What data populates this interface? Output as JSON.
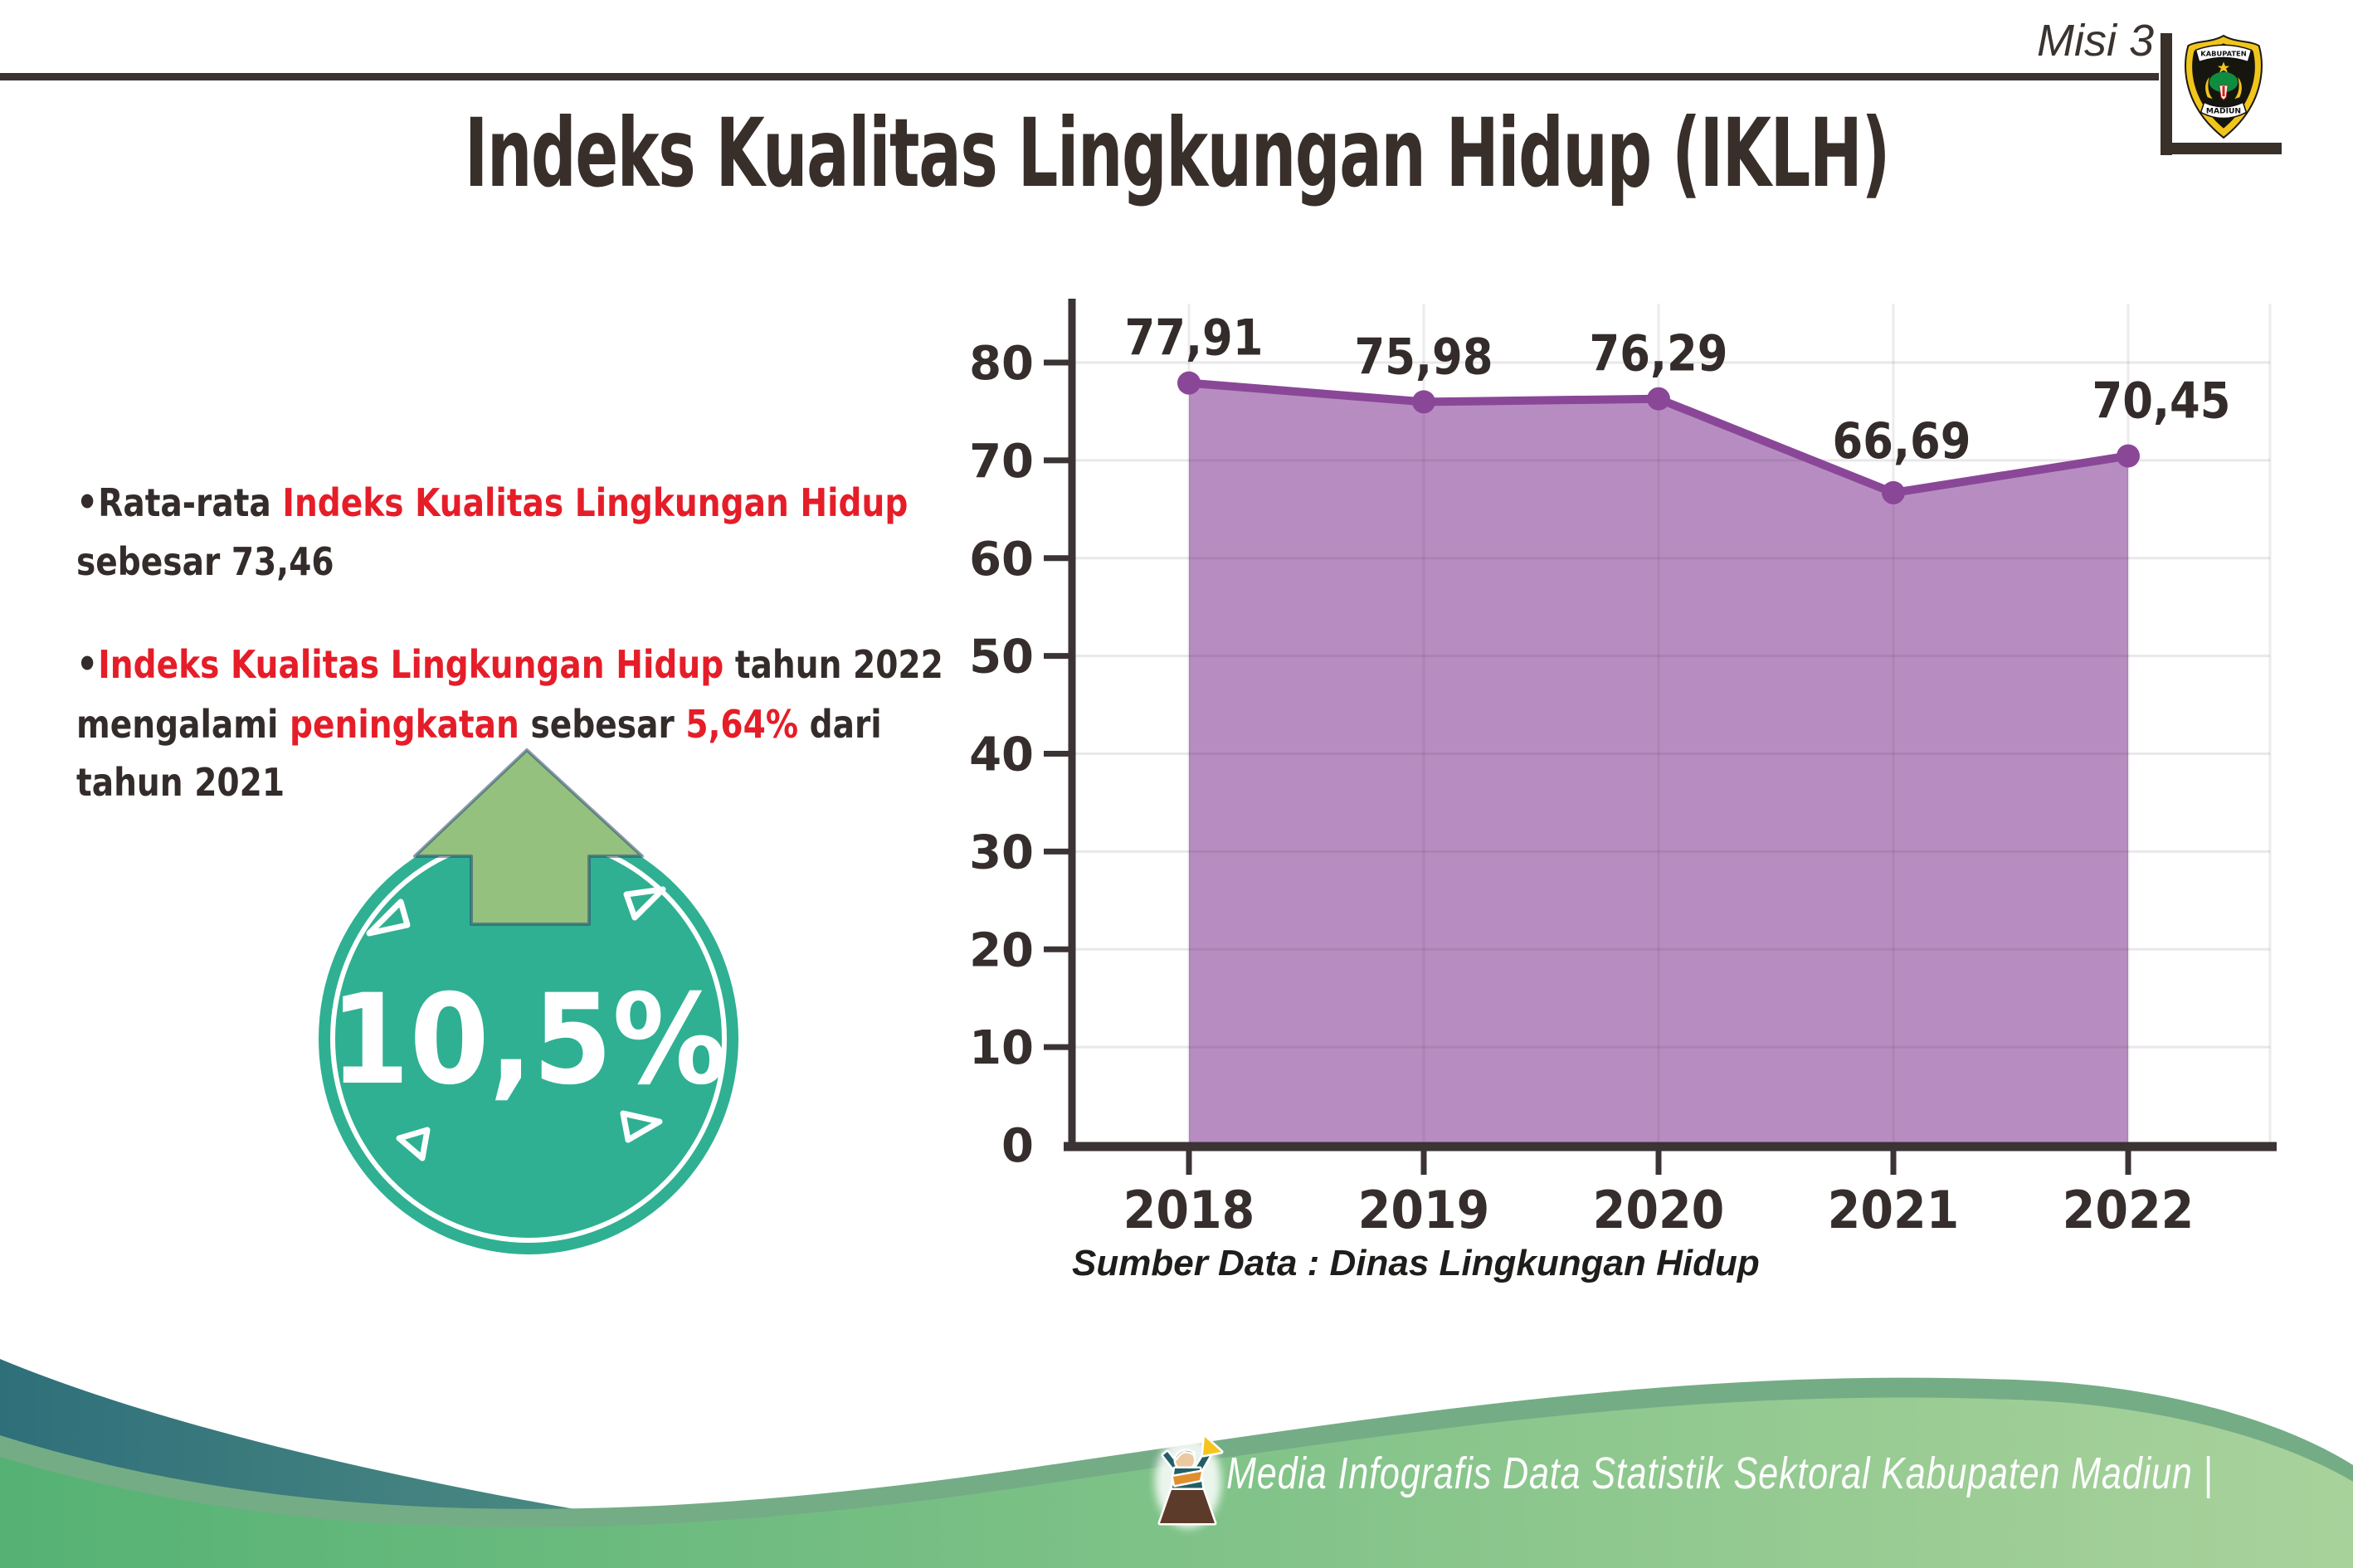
{
  "header": {
    "misi_label": "Misi 3",
    "title": "Indeks Kualitas Lingkungan Hidup (IKLH)",
    "crest": {
      "top_text": "KABUPATEN",
      "bottom_text": "MADIUN"
    }
  },
  "bullets": {
    "dot": "•",
    "p1": [
      {
        "text": "Rata-rata ",
        "color": "dark"
      },
      {
        "text": "Indeks Kualitas Lingkungan Hidup",
        "color": "red"
      },
      {
        "text": "sebesar 73,46",
        "color": "dark"
      }
    ],
    "p2": [
      {
        "text": "Indeks Kualitas Lingkungan Hidup",
        "color": "red"
      },
      {
        "text": " tahun 2022",
        "color": "dark"
      },
      {
        "text": "mengalami ",
        "color": "dark"
      },
      {
        "text": "peningkatan",
        "color": "red"
      },
      {
        "text": " sebesar ",
        "color": "dark"
      },
      {
        "text": "5,64%",
        "color": "red"
      },
      {
        "text": " dari",
        "color": "dark"
      },
      {
        "text": "tahun 2021",
        "color": "dark"
      }
    ]
  },
  "badge": {
    "value": "10,5%"
  },
  "chart_data": {
    "type": "area",
    "title": "",
    "categories": [
      "2018",
      "2019",
      "2020",
      "2021",
      "2022"
    ],
    "values": [
      77.91,
      75.98,
      76.29,
      66.69,
      70.45
    ],
    "value_labels": [
      "77,91",
      "75,98",
      "76,29",
      "66,69",
      "70,45"
    ],
    "xlabel": "",
    "ylabel": "",
    "y_ticks": [
      0,
      10,
      20,
      30,
      40,
      50,
      60,
      70,
      80
    ],
    "ylim": [
      0,
      85
    ],
    "grid": true,
    "legend": "none",
    "fill_color": "#b78dc1",
    "line_color": "#8a4798",
    "marker": "circle",
    "source": "Sumber Data : Dinas Lingkungan Hidup"
  },
  "footer": {
    "credit": "Media Infografis Data Statistik Sektoral Kabupaten Madiun |"
  },
  "colors": {
    "red": "#e51d28",
    "text_dark": "#332c2a",
    "axis_dark": "#3b3334",
    "purple_fill": "#b78dc1",
    "purple_line": "#8a4798",
    "badge_teal": "#2fb092",
    "arrow_green": "#95c17e",
    "arrow_outline": "#2c4a70",
    "wave_teal_left": "#2f6f7a",
    "wave_teal_right": "#6fae8c",
    "wave_sage": "#74ac86",
    "wave_green_left": "#55b274",
    "wave_green_right": "#a9d29b",
    "logo_yellow": "#f2c51c",
    "footer_text": "#fdfefd"
  }
}
